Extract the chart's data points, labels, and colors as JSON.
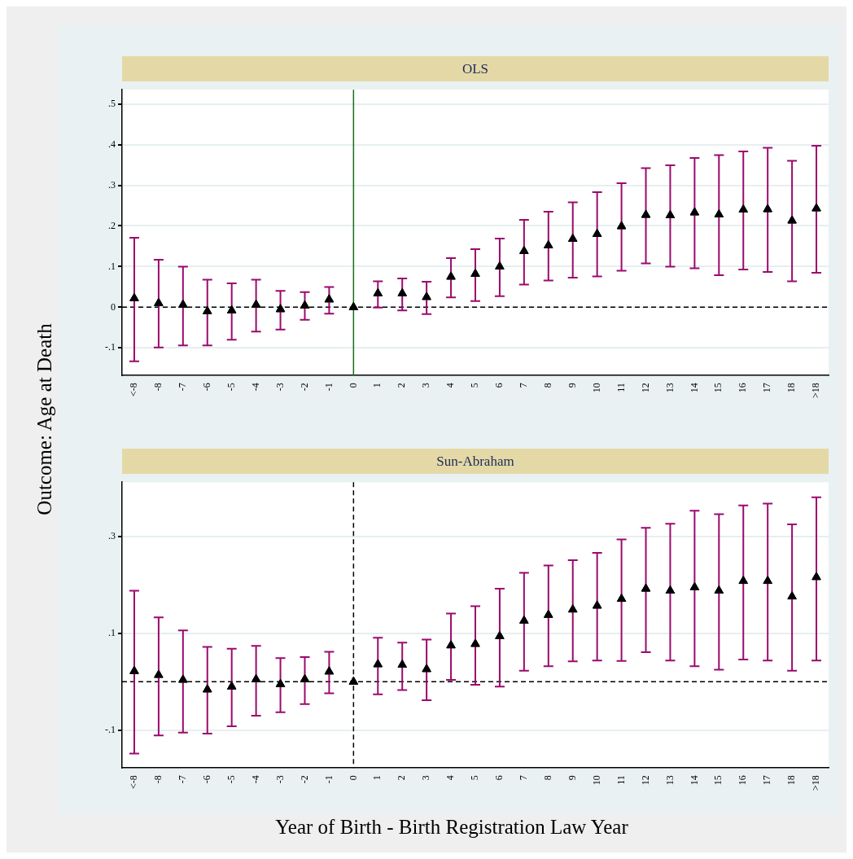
{
  "chart_data": [
    {
      "type": "scatter",
      "title": "OLS",
      "ylabel": "Outcome: Age at Death",
      "categories": [
        "<-8",
        "-8",
        "-7",
        "-6",
        "-5",
        "-4",
        "-3",
        "-2",
        "-1",
        "0",
        "1",
        "2",
        "3",
        "4",
        "5",
        "6",
        "7",
        "8",
        "9",
        "10",
        "11",
        "12",
        "13",
        "14",
        "15",
        "16",
        "17",
        "18",
        ">18"
      ],
      "series": [
        {
          "color": "#000000",
          "values": [
            0.022,
            0.01,
            0.006,
            -0.01,
            -0.008,
            0.006,
            -0.005,
            0.004,
            0.019,
            0,
            0.034,
            0.034,
            0.025,
            0.075,
            0.082,
            0.1,
            0.138,
            0.152,
            0.168,
            0.18,
            0.199,
            0.227,
            0.226,
            0.233,
            0.228,
            0.24,
            0.241,
            0.213,
            0.243
          ],
          "errors": [
            [
              -0.133,
              0.171
            ],
            [
              -0.099,
              0.117
            ],
            [
              -0.094,
              0.1
            ],
            [
              -0.094,
              0.068
            ],
            [
              -0.08,
              0.059
            ],
            [
              -0.06,
              0.068
            ],
            [
              -0.055,
              0.04
            ],
            [
              -0.031,
              0.037
            ],
            [
              -0.016,
              0.05
            ],
            null,
            [
              -0.001,
              0.064
            ],
            [
              -0.008,
              0.071
            ],
            [
              -0.017,
              0.063
            ],
            [
              0.024,
              0.121
            ],
            [
              0.015,
              0.143
            ],
            [
              0.027,
              0.169
            ],
            [
              0.056,
              0.215
            ],
            [
              0.066,
              0.235
            ],
            [
              0.073,
              0.258
            ],
            [
              0.076,
              0.283
            ],
            [
              0.09,
              0.305
            ],
            [
              0.108,
              0.342
            ],
            [
              0.1,
              0.349
            ],
            [
              0.096,
              0.367
            ],
            [
              0.079,
              0.374
            ],
            [
              0.093,
              0.383
            ],
            [
              0.087,
              0.392
            ],
            [
              0.064,
              0.36
            ],
            [
              0.085,
              0.397
            ]
          ]
        }
      ],
      "ylim": [
        -0.168,
        0.535
      ],
      "yticks": [
        {
          "value": -0.1,
          "label": "-.1"
        },
        0,
        {
          "value": 0.1,
          "label": ".1"
        },
        {
          "value": 0.2,
          "label": ".2"
        },
        {
          "value": 0.3,
          "label": ".3"
        },
        {
          "value": 0.4,
          "label": ".4"
        },
        {
          "value": 0.5,
          "label": ".5"
        }
      ],
      "grid": "y",
      "marker": "triangle",
      "ref_lines": [
        {
          "axis": "y",
          "value": 0,
          "color": "#000000",
          "line_style": "dashed"
        },
        {
          "axis": "x",
          "value": "0",
          "color": "#1a6e1a",
          "line_style": "solid"
        }
      ]
    },
    {
      "type": "scatter",
      "title": "Sun-Abraham",
      "xlabel": "Year of Birth - Birth Registration Law Year",
      "categories": [
        "<-8",
        "-8",
        "-7",
        "-6",
        "-5",
        "-4",
        "-3",
        "-2",
        "-1",
        "0",
        "1",
        "2",
        "3",
        "4",
        "5",
        "6",
        "7",
        "8",
        "9",
        "10",
        "11",
        "12",
        "13",
        "14",
        "15",
        "16",
        "17",
        "18",
        ">18"
      ],
      "series": [
        {
          "color": "#000000",
          "values": [
            0.022,
            0.014,
            0.004,
            -0.016,
            -0.01,
            0.005,
            -0.005,
            0.005,
            0.021,
            0,
            0.036,
            0.035,
            0.026,
            0.075,
            0.078,
            0.094,
            0.126,
            0.138,
            0.149,
            0.157,
            0.171,
            0.192,
            0.188,
            0.195,
            0.188,
            0.208,
            0.208,
            0.176,
            0.216
          ],
          "errors": [
            [
              -0.148,
              0.188
            ],
            [
              -0.111,
              0.133
            ],
            [
              -0.105,
              0.106
            ],
            [
              -0.107,
              0.072
            ],
            [
              -0.092,
              0.068
            ],
            [
              -0.07,
              0.074
            ],
            [
              -0.063,
              0.049
            ],
            [
              -0.046,
              0.051
            ],
            [
              -0.024,
              0.062
            ],
            null,
            [
              -0.026,
              0.091
            ],
            [
              -0.017,
              0.081
            ],
            [
              -0.038,
              0.087
            ],
            [
              0.004,
              0.141
            ],
            [
              -0.006,
              0.156
            ],
            [
              -0.01,
              0.192
            ],
            [
              0.023,
              0.225
            ],
            [
              0.032,
              0.24
            ],
            [
              0.042,
              0.251
            ],
            [
              0.044,
              0.266
            ],
            [
              0.043,
              0.294
            ],
            [
              0.061,
              0.318
            ],
            [
              0.044,
              0.326
            ],
            [
              0.032,
              0.353
            ],
            [
              0.025,
              0.346
            ],
            [
              0.046,
              0.364
            ],
            [
              0.044,
              0.368
            ],
            [
              0.023,
              0.325
            ],
            [
              0.044,
              0.381
            ]
          ]
        }
      ],
      "ylim": [
        -0.178,
        0.412
      ],
      "yticks": [
        {
          "value": -0.1,
          "label": "-.1"
        },
        {
          "value": 0.1,
          "label": ".1"
        },
        {
          "value": 0.3,
          "label": ".3"
        }
      ],
      "grid": "y",
      "marker": "triangle",
      "ref_lines": [
        {
          "axis": "y",
          "value": 0,
          "color": "#000000",
          "line_style": "dashed"
        },
        {
          "axis": "x",
          "value": "0",
          "color": "#000000",
          "line_style": "dashed"
        }
      ]
    }
  ]
}
